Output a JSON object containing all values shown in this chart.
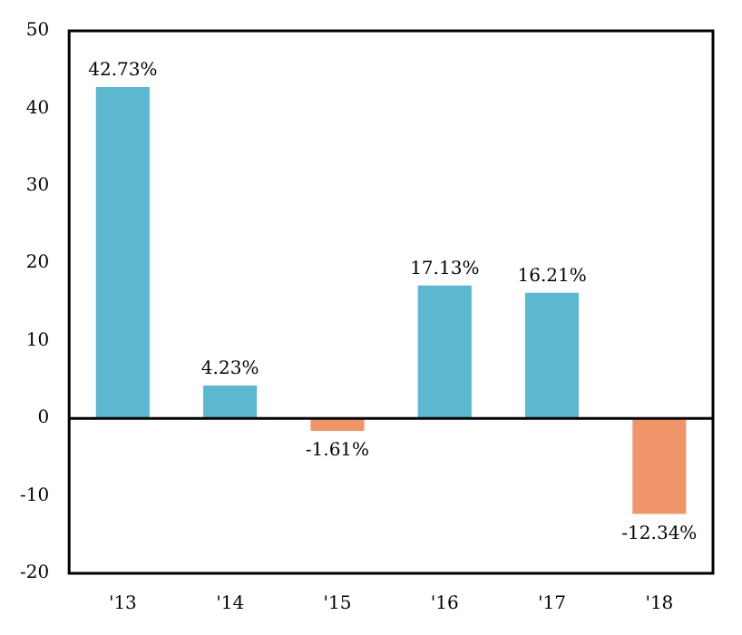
{
  "chart_data": {
    "type": "bar",
    "categories": [
      "'13",
      "'14",
      "'15",
      "'16",
      "'17",
      "'18"
    ],
    "values": [
      42.73,
      4.23,
      -1.61,
      17.13,
      16.21,
      -12.34
    ],
    "colors": [
      "#5bb8d0",
      "#5bb8d0",
      "#f0956a",
      "#5bb8d0",
      "#5bb8d0",
      "#f0956a"
    ],
    "value_labels": [
      "42.73%",
      "4.23%",
      "-1.61%",
      "17.13%",
      "16.21%",
      "-12.34%"
    ],
    "ylim": [
      -20,
      50
    ],
    "yticks": [
      -20,
      -10,
      0,
      10,
      20,
      30,
      40,
      50
    ],
    "ref_lines": [
      {
        "axis": "y",
        "value": 0,
        "color": "#000000"
      }
    ],
    "grid": false,
    "legend": false
  }
}
